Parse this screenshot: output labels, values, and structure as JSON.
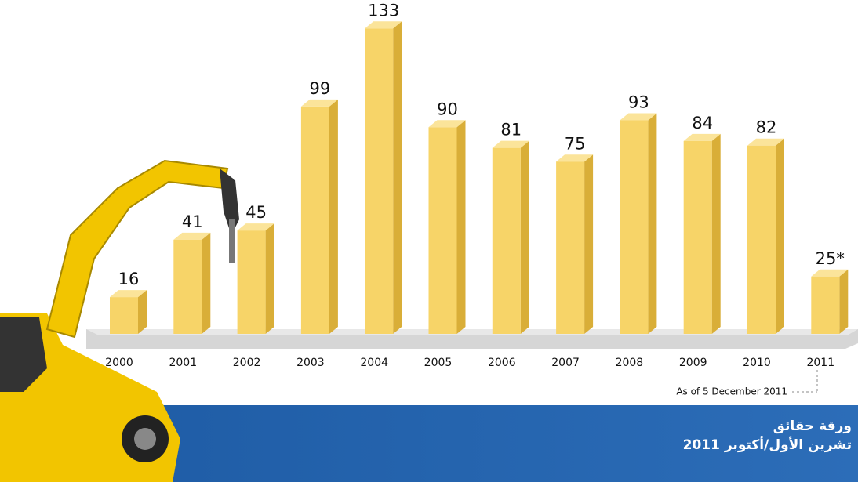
{
  "chart_data": {
    "type": "bar3d",
    "categories": [
      "2000",
      "2001",
      "2002",
      "2003",
      "2004",
      "2005",
      "2006",
      "2007",
      "2008",
      "2009",
      "2010",
      "2011"
    ],
    "values": [
      16,
      41,
      45,
      99,
      133,
      90,
      81,
      75,
      93,
      84,
      82,
      25
    ],
    "value_labels": [
      "16",
      "41",
      "45",
      "99",
      "133",
      "90",
      "81",
      "75",
      "93",
      "84",
      "82",
      "25*"
    ],
    "color": "#f7d468",
    "annotation": "As of 5 December 2011"
  },
  "footer": {
    "title": "ورقة حقائق",
    "date": "تشرين الأول/أكتوبر 2011"
  }
}
